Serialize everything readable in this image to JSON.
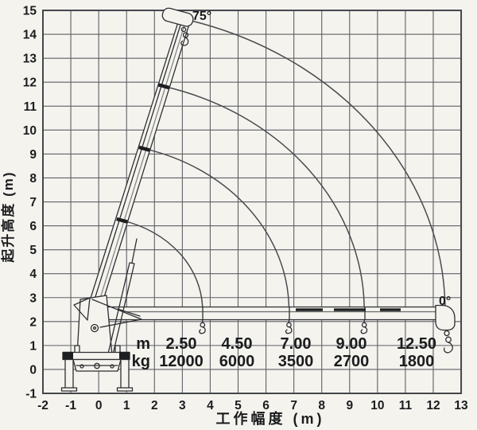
{
  "chart_data": {
    "type": "line",
    "title": "",
    "xlabel": "工作幅度 (m)",
    "ylabel": "起升高度 (m)",
    "xlim": [
      -2,
      13
    ],
    "ylim": [
      -1,
      15
    ],
    "x_ticks": [
      -2,
      -1,
      0,
      1,
      2,
      3,
      4,
      5,
      6,
      7,
      8,
      9,
      10,
      11,
      12,
      13
    ],
    "y_ticks": [
      -1,
      0,
      1,
      2,
      3,
      4,
      5,
      6,
      7,
      8,
      9,
      10,
      11,
      12,
      13,
      14,
      15
    ],
    "grid": true,
    "legend_position": "none",
    "annotations": {
      "boom_angle_max": "75°",
      "boom_angle_min": "0°"
    },
    "boom_arc_radii_m": [
      12.6,
      9.7,
      7.0,
      3.9
    ],
    "load_table": {
      "row_labels": [
        "m",
        "kg"
      ],
      "radius_m": [
        "2.50",
        "4.50",
        "7.00",
        "9.00",
        "12.50"
      ],
      "capacity_kg": [
        "12000",
        "6000",
        "3500",
        "2700",
        "1800"
      ]
    }
  },
  "colors": {
    "paper": "#f4f3ee",
    "grid_line": "#5f6066",
    "border_line": "#45464c",
    "ink": "#1b1c1e",
    "crane_line": "#2e2f32",
    "arc_line": "#4a4b50"
  }
}
